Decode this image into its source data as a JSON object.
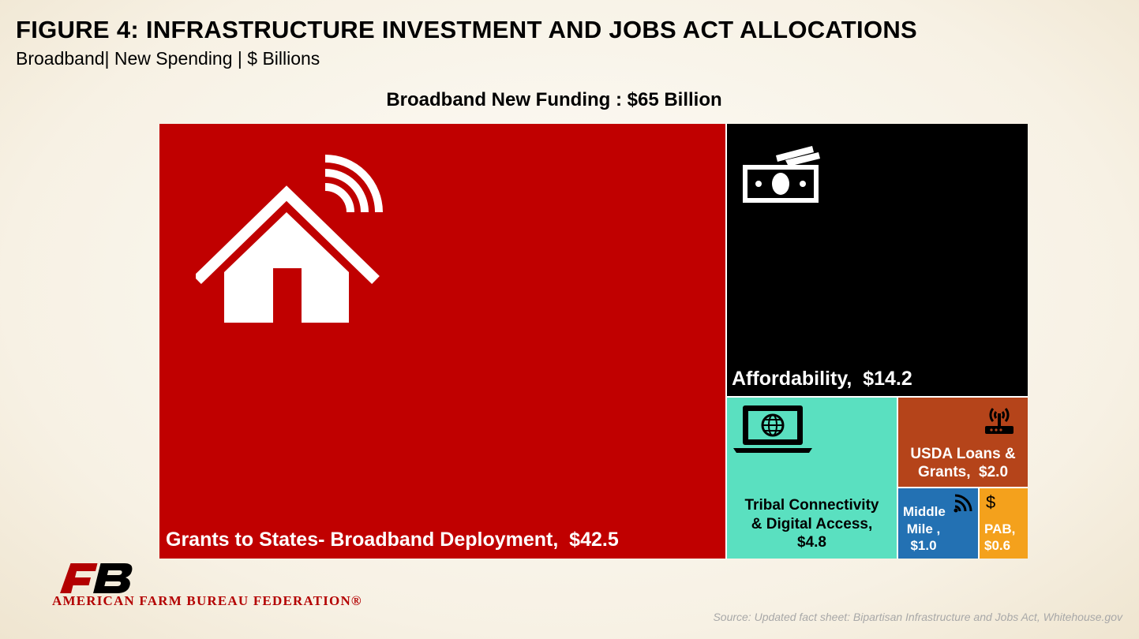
{
  "header": {
    "title": "FIGURE 4: INFRASTRUCTURE INVESTMENT AND JOBS ACT ALLOCATIONS",
    "subtitle": "Broadband| New Spending | $ Billions"
  },
  "chart_data": {
    "type": "treemap",
    "title": "Broadband New Funding : $65 Billion",
    "unit": "$ Billions",
    "items": [
      {
        "name": "Grants to States- Broadband Deployment",
        "value": 42.5,
        "label": "Grants to States- Broadband Deployment,  $42.5",
        "color": "#c00000",
        "icon": "house-wifi-icon"
      },
      {
        "name": "Affordability",
        "value": 14.2,
        "label": "Affordability,  $14.2",
        "color": "#000000",
        "icon": "money-bills-icon"
      },
      {
        "name": "Tribal Connectivity & Digital Access",
        "value": 4.8,
        "label": "Tribal Connectivity & Digital Access, $4.8",
        "color": "#5ae0c0",
        "icon": "laptop-globe-icon"
      },
      {
        "name": "USDA Loans & Grants",
        "value": 2.0,
        "label": "USDA Loans & Grants,  $2.0",
        "color": "#b5441a",
        "icon": "router-icon"
      },
      {
        "name": "Middle Mile",
        "value": 1.0,
        "label": "Middle Mile , $1.0",
        "color": "#2371b3",
        "icon": "wifi-icon"
      },
      {
        "name": "PAB",
        "value": 0.6,
        "label": "PAB, $0.6",
        "color": "#f4a11c",
        "icon": "dollar-icon"
      }
    ]
  },
  "footer": {
    "logo_text": "AMERICAN FARM BUREAU FEDERATION®",
    "source": "Source: Updated fact sheet: Bipartisan Infrastructure and Jobs Act, Whitehouse.gov"
  }
}
